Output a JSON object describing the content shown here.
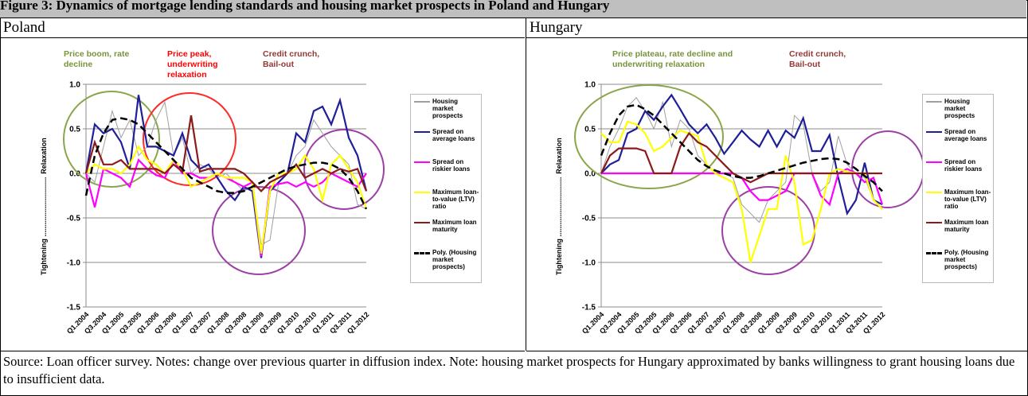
{
  "header": {
    "title": "Figure 3: Dynamics of mortgage lending standards and housing market prospects in Poland and Hungary"
  },
  "chart_data": [
    {
      "type": "line",
      "title": "Poland",
      "ylabel_bottom": "Tightening ..............................",
      "ylabel_top": "Relaxation",
      "categories": [
        "Q1.2004",
        null,
        "Q3.2004",
        null,
        "Q1.2005",
        null,
        "Q3.2005",
        null,
        "Q1.2006",
        null,
        "Q3.2006",
        null,
        "Q1.2007",
        null,
        "Q3.2007",
        null,
        "Q1.2008",
        null,
        "Q3.2008",
        null,
        "Q1.2009",
        null,
        "Q3.2009",
        null,
        "Q1.2010",
        null,
        "Q3.2010",
        null,
        "Q1.2011",
        null,
        "Q3.2011",
        null,
        "Q1.2012"
      ],
      "ylim": [
        -1.5,
        1.0
      ],
      "yticks": [
        {
          "value": 1.0,
          "label": "1.0"
        },
        0.5,
        {
          "value": 0,
          "label": "0.0"
        },
        -0.5,
        {
          "value": -1.0,
          "label": "-1.0"
        },
        -1.5
      ],
      "grid": true,
      "annotations": [
        {
          "text": "Price boom, rate decline",
          "color": "#77933c"
        },
        {
          "text": "Price peak, underwriting relaxation",
          "color": "#ff0000"
        },
        {
          "text": "Credit crunch, Bail-out",
          "color": "#953735"
        }
      ],
      "series": [
        {
          "name": "Housing market prospects",
          "color": "#a0a0a0",
          "values": [
            0,
            -0.1,
            0.3,
            0.7,
            0.4,
            0.6,
            0.2,
            0.3,
            0.6,
            0.8,
            0.2,
            0.4,
            0,
            0.1,
            0.05,
            -0.05,
            0,
            -0.1,
            -0.2,
            -0.15,
            -0.8,
            -0.75,
            -0.1,
            0,
            0.2,
            0.3,
            0.6,
            0.45,
            0.3,
            0.2,
            0.1,
            -0.35,
            -0.4
          ]
        },
        {
          "name": "Spread on average loans",
          "color": "#1f1f99",
          "values": [
            0,
            0.55,
            0.45,
            0.5,
            0.35,
            0.05,
            0.88,
            0.3,
            0.3,
            0.25,
            0.2,
            0.45,
            0.15,
            0.05,
            0.1,
            -0.05,
            -0.2,
            -0.3,
            -0.15,
            -0.2,
            -0.95,
            -0.2,
            -0.1,
            0,
            0.45,
            0.35,
            0.7,
            0.75,
            0.55,
            0.82,
            0.4,
            0.2,
            -0.2
          ]
        },
        {
          "name": "Spread on riskier loans",
          "color": "#ff00ff",
          "values": [
            0,
            -0.38,
            0.05,
            0,
            -0.05,
            -0.15,
            0.15,
            0.05,
            -0.02,
            -0.05,
            0.15,
            0,
            0,
            -0.05,
            -0.05,
            0,
            -0.05,
            -0.1,
            -0.15,
            -0.1,
            -0.93,
            -0.15,
            -0.12,
            -0.1,
            -0.15,
            -0.1,
            -0.15,
            -0.1,
            0,
            -0.05,
            -0.1,
            -0.15,
            0
          ]
        },
        {
          "name": "Maximum loan-to-value (LTV) ratio",
          "color": "#ffff00",
          "values": [
            0,
            0.1,
            0.05,
            0.05,
            0,
            0.1,
            0.3,
            0.15,
            0.1,
            0,
            0.15,
            0.05,
            -0.15,
            -0.1,
            -0.05,
            0,
            -0.05,
            -0.05,
            -0.05,
            -0.1,
            -0.9,
            -0.2,
            0,
            0,
            0.05,
            0.2,
            0.05,
            -0.3,
            0.1,
            0.2,
            0.05,
            -0.1,
            -0.4
          ]
        },
        {
          "name": "Maximum loan maturity",
          "color": "#8b1a1a",
          "values": [
            0,
            0.35,
            0.1,
            0.1,
            0.15,
            0.05,
            0.05,
            0.05,
            0.05,
            0,
            0.1,
            0.02,
            0.65,
            0.02,
            0.05,
            0.05,
            0.05,
            0.05,
            0,
            -0.1,
            -0.2,
            -0.1,
            -0.05,
            0,
            0.1,
            -0.05,
            0,
            0.05,
            0,
            0.05,
            0.02,
            0.05,
            -0.2
          ]
        },
        {
          "name": "Poly. (Housing market prospects)",
          "color": "#000000",
          "dashed": true,
          "values": [
            -0.25,
            0.2,
            0.45,
            0.6,
            0.62,
            0.6,
            0.55,
            0.45,
            0.35,
            0.25,
            0.15,
            0.05,
            -0.05,
            -0.1,
            -0.15,
            -0.2,
            -0.22,
            -0.22,
            -0.2,
            -0.15,
            -0.1,
            -0.05,
            0,
            0.05,
            0.08,
            0.1,
            0.12,
            0.12,
            0.1,
            0.05,
            -0.05,
            -0.2,
            -0.4
          ]
        }
      ]
    },
    {
      "type": "line",
      "title": "Hungary",
      "ylabel_bottom": "Tightening ..............................",
      "ylabel_top": "Relaxation",
      "categories": [
        "Q1.2004",
        null,
        "Q3.2004",
        null,
        "Q1.2005",
        null,
        "Q3.2005",
        null,
        "Q1.2006",
        null,
        "Q3.2006",
        null,
        "Q1.2007",
        null,
        "Q3.2007",
        null,
        "Q1.2008",
        null,
        "Q3.2008",
        null,
        "Q1.2009",
        null,
        "Q3.2009",
        null,
        "Q1.2010",
        null,
        "Q3.2010",
        null,
        "Q1.2011",
        null,
        "Q3.2011",
        null,
        "Q1.2012"
      ],
      "ylim": [
        -1.5,
        1.0
      ],
      "yticks": [
        {
          "value": 1.0,
          "label": "1.0"
        },
        0.5,
        {
          "value": 0,
          "label": "0.0"
        },
        -0.5,
        {
          "value": -1.0,
          "label": "-1.0"
        },
        -1.5
      ],
      "grid": true,
      "annotations": [
        {
          "text": "Price plateau, rate decline and underwriting relaxation",
          "color": "#77933c"
        },
        {
          "text": "Credit crunch, Bail-out",
          "color": "#953735"
        }
      ],
      "series": [
        {
          "name": "Housing market prospects",
          "color": "#a0a0a0",
          "values": [
            0,
            0.3,
            0.5,
            0.75,
            0.85,
            0.7,
            0.5,
            0.8,
            0.3,
            0.6,
            0.5,
            0.2,
            0.1,
            0,
            0,
            -0.05,
            -0.35,
            -0.45,
            -0.55,
            -0.3,
            -0.2,
            -0.1,
            0.65,
            0.55,
            0,
            -0.2,
            -0.1,
            0.42,
            0.1,
            0,
            -0.05,
            -0.3,
            -0.4
          ]
        },
        {
          "name": "Spread on average loans",
          "color": "#1f1f99",
          "values": [
            0,
            0.1,
            0.15,
            0.45,
            0.5,
            0.7,
            0.6,
            0.75,
            0.88,
            0.72,
            0.55,
            0.45,
            0.55,
            0.4,
            0.22,
            0.35,
            0.48,
            0.38,
            0.3,
            0.48,
            0.3,
            0.48,
            0.4,
            0.62,
            0.25,
            0.25,
            0.43,
            -0.05,
            -0.45,
            -0.3,
            0.12,
            -0.3,
            -0.35
          ]
        },
        {
          "name": "Spread on riskier loans",
          "color": "#ff00ff",
          "values": [
            0,
            0,
            0,
            0,
            0,
            0,
            0,
            0,
            0,
            0,
            0,
            0,
            0,
            0,
            0,
            0,
            -0.05,
            -0.2,
            -0.3,
            -0.3,
            -0.25,
            -0.2,
            0,
            0,
            0,
            -0.25,
            -0.35,
            0,
            0.05,
            0,
            -0.1,
            -0.05,
            -0.35
          ]
        },
        {
          "name": "Maximum loan-to-value (LTV) ratio",
          "color": "#ffff00",
          "values": [
            0.45,
            0.35,
            0.35,
            0.58,
            0.55,
            0.45,
            0.25,
            0.3,
            0.4,
            0.48,
            0.45,
            0.42,
            0.1,
            0,
            -0.05,
            -0.1,
            -0.4,
            -1.0,
            -0.7,
            -0.4,
            -0.4,
            0.2,
            -0.1,
            -0.8,
            -0.75,
            -0.4,
            0,
            0.05,
            0.02,
            0,
            0,
            -0.3,
            -0.4
          ]
        },
        {
          "name": "Maximum loan maturity",
          "color": "#8b1a1a",
          "values": [
            0,
            0.2,
            0.28,
            0.28,
            0.28,
            0.25,
            0,
            0,
            0,
            0.3,
            0.45,
            0.35,
            0.3,
            0.2,
            0.1,
            0,
            -0.05,
            -0.1,
            -0.05,
            0,
            0,
            0,
            0,
            0,
            0,
            0,
            0,
            0,
            0,
            0,
            0,
            0,
            0
          ]
        },
        {
          "name": "Poly. (Housing market prospects)",
          "color": "#000000",
          "dashed": true,
          "values": [
            0.2,
            0.45,
            0.65,
            0.75,
            0.77,
            0.72,
            0.65,
            0.55,
            0.45,
            0.35,
            0.25,
            0.15,
            0.08,
            0.03,
            0,
            -0.03,
            -0.05,
            -0.05,
            -0.03,
            0,
            0.03,
            0.06,
            0.09,
            0.12,
            0.14,
            0.16,
            0.17,
            0.16,
            0.12,
            0.05,
            -0.03,
            -0.1,
            -0.2
          ]
        }
      ]
    }
  ],
  "footer": "Source: Loan officer survey. Notes: change over previous quarter in diffusion index. Note: housing market prospects for Hungary approximated by banks willingness to grant housing loans due to insufficient data."
}
